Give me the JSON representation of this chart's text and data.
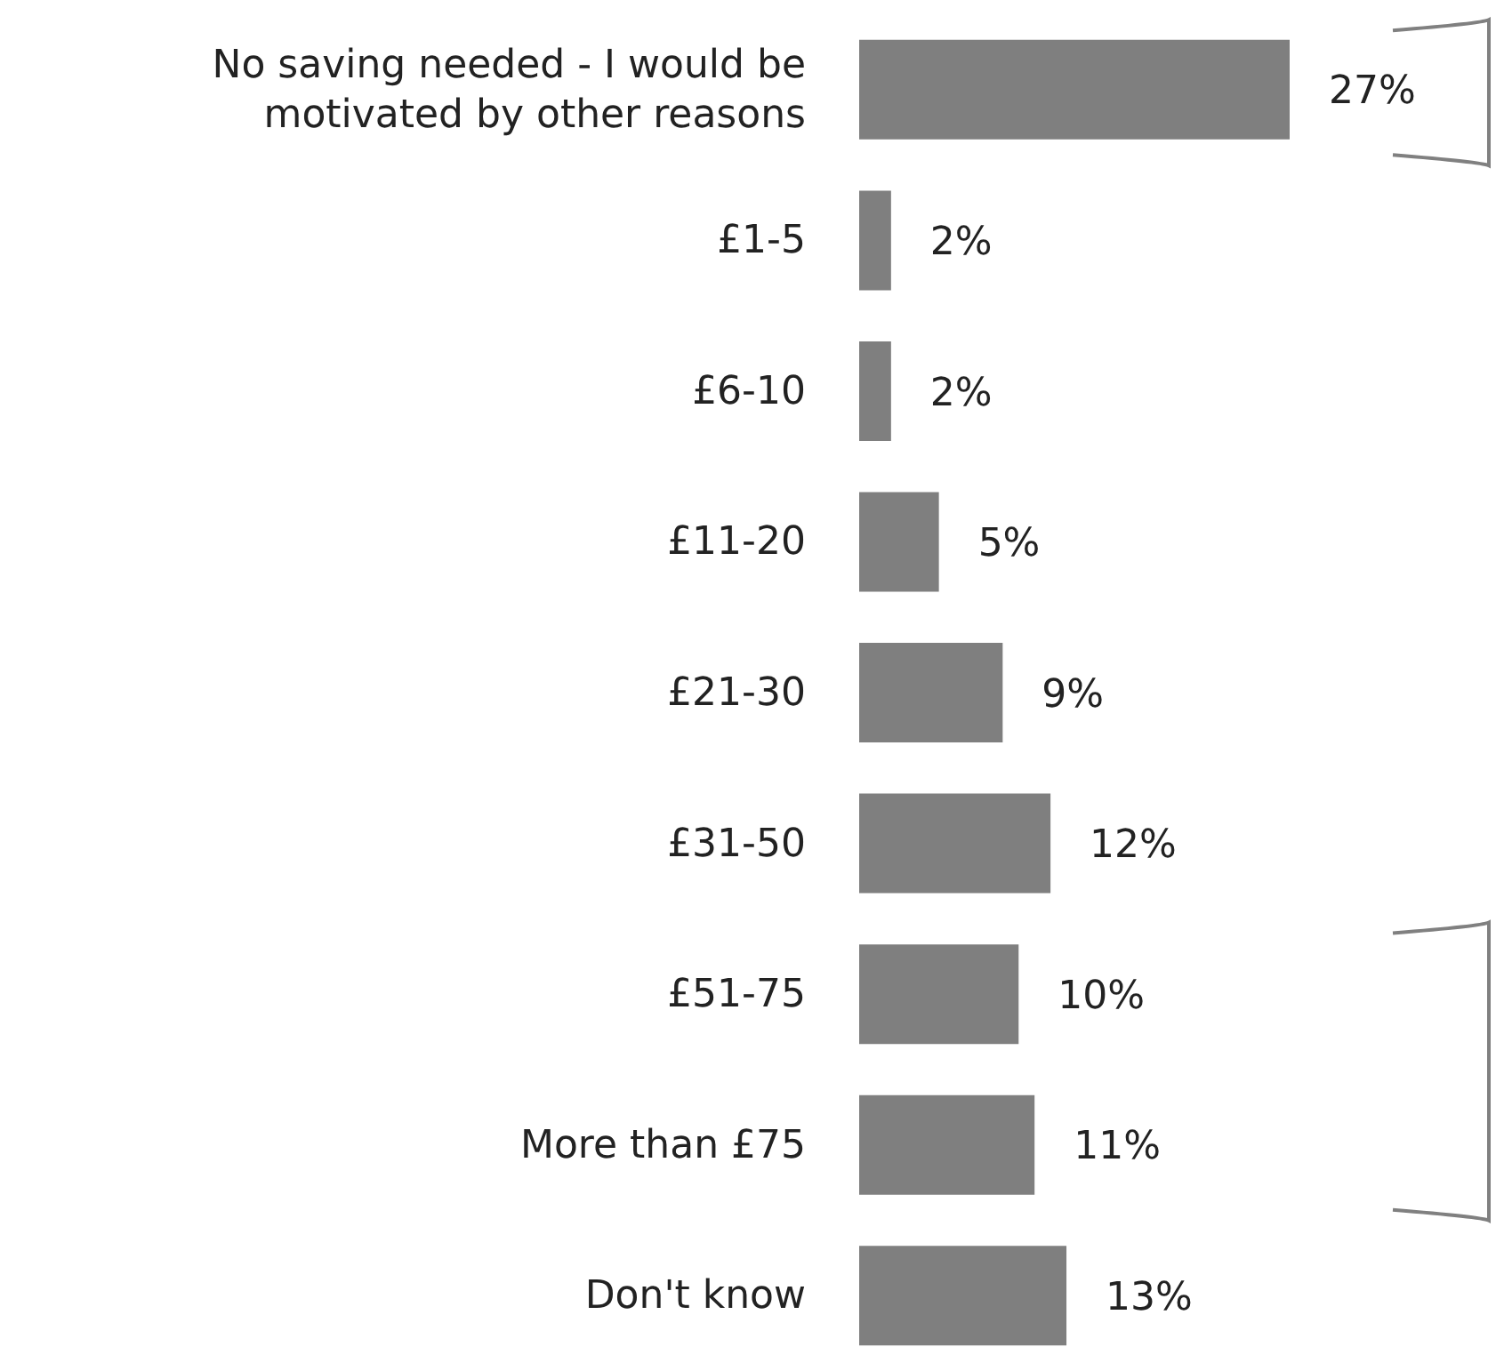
{
  "chart_data": {
    "type": "bar",
    "orientation": "horizontal",
    "categories": [
      "No saving needed - I would be motivated by other reasons",
      "£1-5",
      "£6-10",
      "£11-20",
      "£21-30",
      "£31-50",
      "£51-75",
      "More than £75",
      "Don't know"
    ],
    "values": [
      27,
      2,
      2,
      5,
      9,
      12,
      10,
      11,
      13
    ],
    "value_labels": [
      "27%",
      "2%",
      "2%",
      "5%",
      "9%",
      "12%",
      "10%",
      "11%",
      "13%"
    ],
    "color": "#7f7f7f"
  }
}
